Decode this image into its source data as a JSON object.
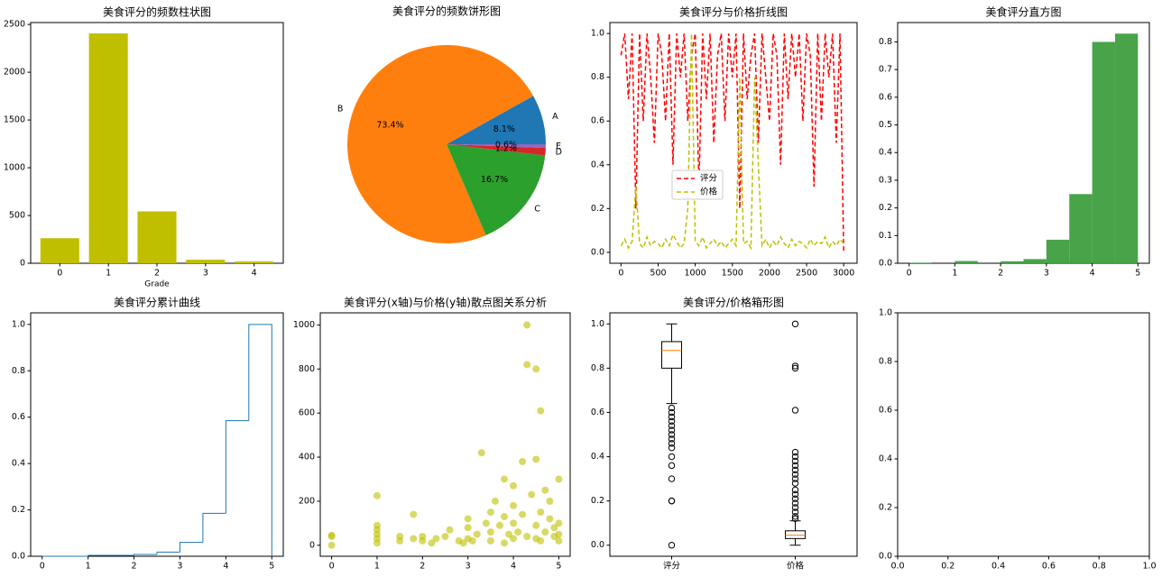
{
  "chart_data": [
    {
      "type": "bar",
      "title": "美食评分的频数柱状图",
      "xlabel": "Grade",
      "categories": [
        "0",
        "1",
        "2",
        "3",
        "4"
      ],
      "values": [
        262,
        2406,
        543,
        37,
        19
      ],
      "color": "#bfbf00",
      "ylim": [
        0,
        2520
      ],
      "yticks": [
        0,
        500,
        1000,
        1500,
        2000,
        2500
      ]
    },
    {
      "type": "pie",
      "title": "美食评分的频数饼形图",
      "categories": [
        "A",
        "B",
        "C",
        "D",
        "E"
      ],
      "values": [
        8.1,
        73.4,
        16.7,
        1.2,
        0.6
      ],
      "value_labels": [
        "8.1%",
        "73.4%",
        "16.7%",
        "1.2%",
        "0.6%"
      ],
      "colors": [
        "#1f77b4",
        "#ff7f0e",
        "#2ca02c",
        "#d62728",
        "#9467bd"
      ]
    },
    {
      "type": "line",
      "title": "美食评分与价格折线图",
      "legend": "best",
      "x": [
        0,
        50,
        100,
        150,
        200,
        250,
        300,
        350,
        400,
        450,
        500,
        550,
        600,
        650,
        700,
        750,
        800,
        850,
        900,
        950,
        1000,
        1050,
        1100,
        1150,
        1200,
        1250,
        1300,
        1350,
        1400,
        1450,
        1500,
        1550,
        1600,
        1650,
        1700,
        1750,
        1800,
        1850,
        1900,
        1950,
        2000,
        2050,
        2100,
        2150,
        2200,
        2250,
        2300,
        2350,
        2400,
        2450,
        2500,
        2550,
        2600,
        2650,
        2700,
        2750,
        2800,
        2850,
        2900,
        2950,
        3000
      ],
      "series": [
        {
          "name": "评分",
          "color": "#ff0000",
          "values": [
            0.9,
            1.0,
            0.7,
            1.0,
            0.2,
            1.0,
            0.6,
            1.0,
            0.8,
            0.5,
            1.0,
            0.9,
            0.6,
            1.0,
            0.4,
            1.0,
            0.8,
            1.0,
            0.6,
            0.9,
            1.0,
            0.3,
            1.0,
            0.7,
            1.0,
            0.5,
            0.9,
            1.0,
            0.6,
            1.0,
            0.8,
            1.0,
            0.2,
            1.0,
            0.7,
            0.9,
            1.0,
            0.5,
            1.0,
            0.8,
            0.6,
            1.0,
            0.9,
            0.4,
            1.0,
            0.7,
            1.0,
            0.8,
            1.0,
            0.6,
            1.0,
            0.9,
            0.3,
            1.0,
            0.6,
            1.0,
            0.8,
            1.0,
            0.5,
            1.0,
            0.0
          ]
        },
        {
          "name": "价格",
          "color": "#bfbf00",
          "values": [
            0.03,
            0.06,
            0.02,
            0.05,
            0.3,
            0.04,
            0.02,
            0.07,
            0.03,
            0.05,
            0.04,
            0.02,
            0.06,
            0.03,
            0.08,
            0.05,
            0.02,
            0.04,
            0.2,
            1.0,
            0.05,
            0.03,
            0.07,
            0.02,
            0.04,
            0.06,
            0.03,
            0.05,
            0.02,
            0.04,
            0.06,
            0.03,
            0.8,
            0.04,
            0.05,
            0.02,
            0.8,
            0.4,
            0.03,
            0.06,
            0.02,
            0.05,
            0.03,
            0.07,
            0.04,
            0.02,
            0.06,
            0.03,
            0.05,
            0.04,
            0.02,
            0.06,
            0.03,
            0.05,
            0.04,
            0.07,
            0.02,
            0.05,
            0.03,
            0.06,
            0.04
          ]
        }
      ],
      "xlim": [
        -150,
        3180
      ],
      "xticks": [
        0,
        500,
        1000,
        1500,
        2000,
        2500,
        3000
      ],
      "ylim": [
        -0.05,
        1.05
      ],
      "yticks": [
        {
          "value": 0,
          "label": "0.0"
        },
        {
          "value": 0.2,
          "label": "0.2"
        },
        {
          "value": 0.4,
          "label": "0.4"
        },
        {
          "value": 0.6,
          "label": "0.6"
        },
        {
          "value": 0.8,
          "label": "0.8"
        },
        {
          "value": 1,
          "label": "1.0"
        }
      ]
    },
    {
      "type": "histogram",
      "title": "美食评分直方图",
      "color": "#3f9f3f",
      "bins": [
        0,
        0.5,
        1,
        1.5,
        2,
        2.5,
        3,
        3.5,
        4,
        4.5,
        5
      ],
      "counts": [
        0.002,
        0,
        0.008,
        0,
        0.007,
        0.015,
        0.085,
        0.25,
        0.8,
        0.83
      ],
      "xlim": [
        -0.25,
        5.25
      ],
      "xticks": [
        0,
        1,
        2,
        3,
        4,
        5
      ],
      "ylim": [
        0,
        0.87
      ],
      "yticks": [
        {
          "value": 0,
          "label": "0.0"
        },
        0.1,
        0.2,
        0.3,
        0.4,
        0.5,
        0.6,
        0.7,
        0.8
      ]
    },
    {
      "type": "histogram",
      "histtype": "step",
      "title": "美食评分累计曲线",
      "color": "#1f77b4",
      "bins": [
        0,
        0.5,
        1,
        1.5,
        2,
        2.5,
        3,
        3.5,
        4,
        4.5,
        5
      ],
      "counts": [
        0,
        0,
        0.004,
        0.004,
        0.008,
        0.018,
        0.06,
        0.185,
        0.585,
        1.0
      ],
      "xlim": [
        -0.25,
        5.25
      ],
      "xticks": [
        0,
        1,
        2,
        3,
        4,
        5
      ],
      "ylim": [
        0,
        1.05
      ],
      "yticks": [
        {
          "value": 0,
          "label": "0.0"
        },
        0.2,
        0.4,
        0.6,
        0.8,
        {
          "value": 1,
          "label": "1.0"
        }
      ]
    },
    {
      "type": "scatter",
      "title": "美食评分(x轴)与价格(y轴)散点图关系分析",
      "color": "#bfbf00",
      "x": [
        0,
        0,
        0,
        1,
        1,
        1,
        1,
        1,
        1,
        1.5,
        1.5,
        1.8,
        1.8,
        2,
        2,
        2.2,
        2.3,
        2.5,
        2.6,
        2.8,
        3,
        3,
        3,
        3.2,
        3.3,
        3.4,
        3.5,
        3.5,
        3.6,
        3.7,
        3.8,
        3.8,
        3.9,
        4,
        4,
        4,
        4.1,
        4.2,
        4.2,
        4.3,
        4.3,
        4.3,
        4.4,
        4.5,
        4.5,
        4.5,
        4.6,
        4.6,
        4.7,
        4.7,
        4.8,
        4.8,
        4.9,
        5,
        5,
        5,
        5,
        3.1,
        3.5,
        4,
        4.5,
        2.9,
        3.8,
        4.6,
        4.9
      ],
      "y": [
        0,
        40,
        45,
        10,
        30,
        50,
        70,
        90,
        225,
        20,
        40,
        140,
        30,
        20,
        40,
        10,
        30,
        40,
        70,
        20,
        30,
        80,
        120,
        50,
        420,
        100,
        60,
        150,
        200,
        90,
        300,
        130,
        50,
        270,
        100,
        180,
        60,
        380,
        140,
        1000,
        40,
        820,
        230,
        800,
        90,
        390,
        610,
        150,
        250,
        60,
        120,
        200,
        80,
        300,
        20,
        100,
        50,
        20,
        20,
        30,
        30,
        10,
        10,
        20,
        40
      ],
      "xlim": [
        -0.25,
        5.25
      ],
      "xticks": [
        0,
        1,
        2,
        3,
        4,
        5
      ],
      "ylim": [
        -50,
        1055
      ],
      "yticks": [
        0,
        200,
        400,
        600,
        800,
        1000
      ]
    },
    {
      "type": "box",
      "title": "美食评分/价格箱形图",
      "categories": [
        "评分",
        "价格"
      ],
      "boxes": [
        {
          "whislo": 0.64,
          "q1": 0.8,
          "med": 0.88,
          "q3": 0.92,
          "whishi": 1.0,
          "fliers": [
            0.62,
            0.6,
            0.58,
            0.56,
            0.54,
            0.52,
            0.5,
            0.48,
            0.46,
            0.44,
            0.4,
            0.36,
            0.3,
            0.2,
            0.2,
            0.0
          ]
        },
        {
          "whislo": 0.0,
          "q1": 0.03,
          "med": 0.045,
          "q3": 0.065,
          "whishi": 0.11,
          "fliers": [
            1.0,
            0.81,
            0.8,
            0.61,
            0.42,
            0.4,
            0.38,
            0.36,
            0.34,
            0.32,
            0.3,
            0.28,
            0.25,
            0.23,
            0.21,
            0.19,
            0.17,
            0.15,
            0.13,
            0.12
          ]
        }
      ],
      "median_color": "#ff7f0e",
      "ylim": [
        -0.05,
        1.05
      ],
      "yticks": [
        {
          "value": 0,
          "label": "0.0"
        },
        0.2,
        0.4,
        0.6,
        0.8,
        {
          "value": 1,
          "label": "1.0"
        }
      ]
    },
    {
      "type": "blank",
      "xlim": [
        0,
        1
      ],
      "xticks": [
        {
          "value": 0,
          "label": "0.0"
        },
        0.2,
        0.4,
        0.6,
        0.8,
        {
          "value": 1,
          "label": "1.0"
        }
      ],
      "ylim": [
        0,
        1
      ],
      "yticks": [
        {
          "value": 0,
          "label": "0.0"
        },
        0.2,
        0.4,
        0.6,
        0.8,
        {
          "value": 1,
          "label": "1.0"
        }
      ]
    }
  ]
}
